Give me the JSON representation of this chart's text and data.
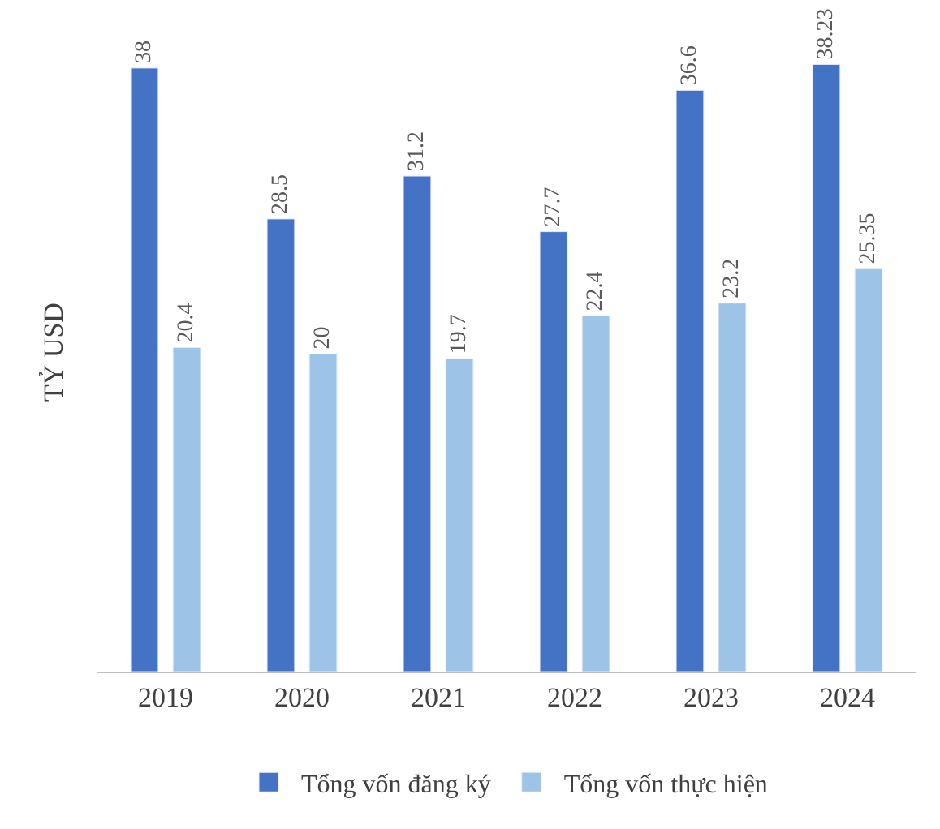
{
  "chart_data": {
    "type": "bar",
    "ylabel": "TỶ USD",
    "categories": [
      "2019",
      "2020",
      "2021",
      "2022",
      "2023",
      "2024"
    ],
    "series": [
      {
        "name": "Tổng vốn đăng ký",
        "color": "#4472c4",
        "values": [
          38,
          28.5,
          31.2,
          27.7,
          36.6,
          38.23
        ]
      },
      {
        "name": "Tổng vốn thực hiện",
        "color": "#9dc3e6",
        "values": [
          20.4,
          20,
          19.7,
          22.4,
          23.2,
          25.35
        ]
      }
    ],
    "data_labels": true,
    "legend": "bottom",
    "tick_labels": "x"
  }
}
